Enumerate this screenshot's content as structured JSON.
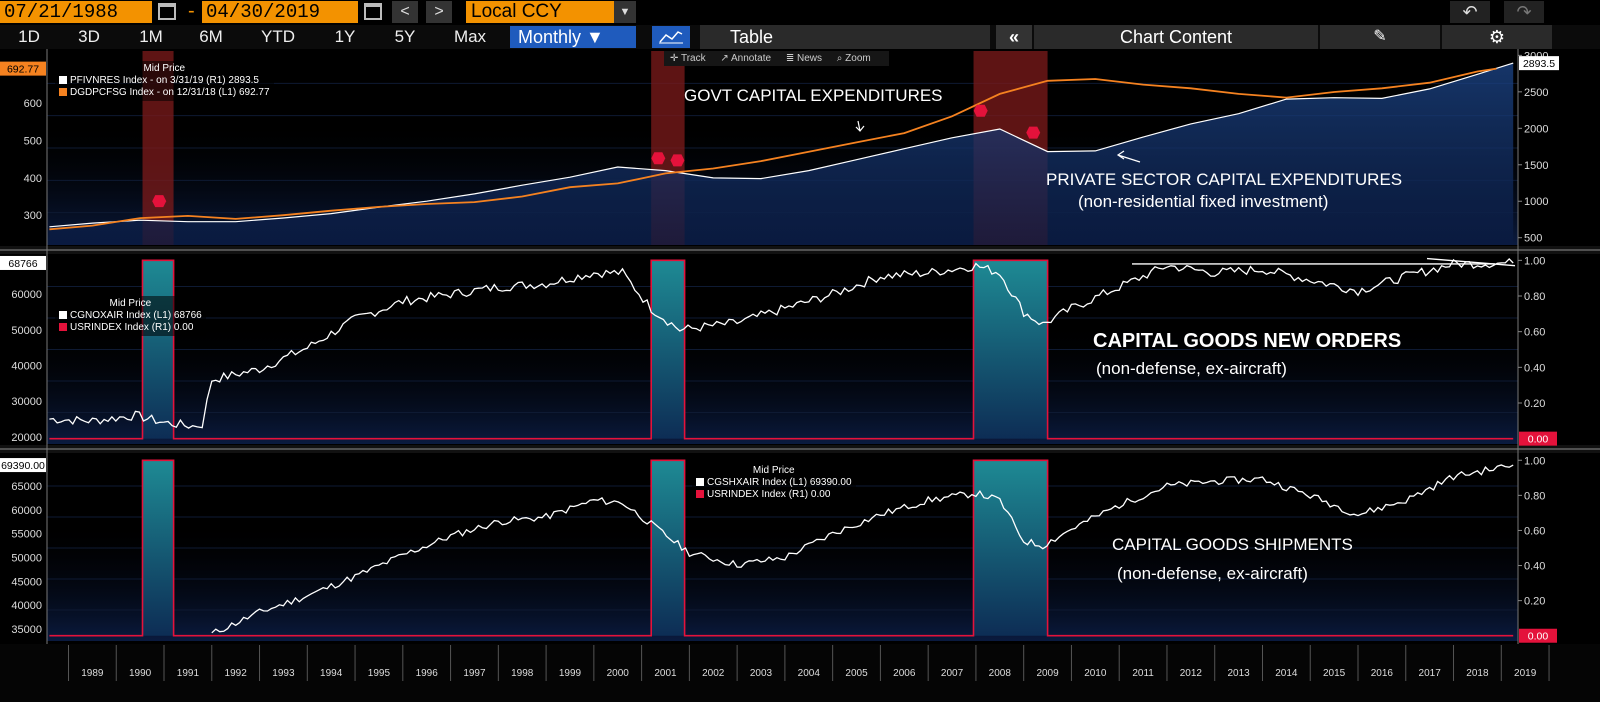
{
  "toolbar": {
    "start_date": "07/21/1988",
    "date_sep": "-",
    "end_date": "04/30/2019",
    "currency": "Local CCY",
    "back": "<",
    "forward": ">",
    "undo": "↶",
    "redo": "↷"
  },
  "timeframes": [
    "1D",
    "3D",
    "1M",
    "6M",
    "YTD",
    "1Y",
    "5Y",
    "Max"
  ],
  "period": "Monthly ▼",
  "table_label": "Table",
  "collapse_label": "«",
  "chart_content_label": "Chart Content",
  "chart_tools": {
    "track": "✛ Track",
    "annotate": "↗ Annotate",
    "news": "≣ News",
    "zoom": "⌕ Zoom"
  },
  "colors": {
    "orange": "#f58220",
    "white": "#ffffff",
    "recession": "#8b1c1c",
    "teal": "#1a7f8a",
    "red": "#e4123b",
    "fill": "#16356b"
  },
  "chart_data": [
    {
      "type": "line",
      "panel": "top",
      "legend_title": "Mid Price",
      "legend": [
        {
          "label": "PFIVNRES Index - on 3/31/19 (R1)  2893.5",
          "color": "#ffffff"
        },
        {
          "label": "DGDPCFSG Index - on 12/31/18 (L1) 692.77",
          "color": "#f58220"
        }
      ],
      "left_axis": {
        "ticks": [
          "600",
          "500",
          "400",
          "300"
        ],
        "tick_values": [
          600,
          500,
          400,
          300
        ],
        "range": [
          220,
          740
        ],
        "last_label": "692.77"
      },
      "right_axis": {
        "ticks": [
          "3000",
          "2500",
          "2000",
          "1500",
          "1000",
          "500"
        ],
        "tick_values": [
          3000,
          2500,
          2000,
          1500,
          1000,
          500
        ],
        "range": [
          400,
          3060
        ],
        "last_label": "2893.5"
      },
      "recessions": [
        [
          1990.55,
          1991.2
        ],
        [
          2001.2,
          2001.9
        ],
        [
          2007.95,
          2009.5
        ]
      ],
      "rec_markers": [
        [
          1990.9,
          1002
        ],
        [
          2001.35,
          1590
        ],
        [
          2001.75,
          1560
        ],
        [
          2008.1,
          2240
        ],
        [
          2009.2,
          1940
        ]
      ],
      "series": [
        {
          "name": "DGDPCFSG",
          "axis": "left",
          "color": "#f58220",
          "x": [
            1988.6,
            1989.5,
            1990.5,
            1991.5,
            1992.5,
            1993.5,
            1994.5,
            1995.5,
            1996.5,
            1997.5,
            1998.5,
            1999.5,
            2000.5,
            2001.5,
            2002.5,
            2003.5,
            2004.5,
            2005.5,
            2006.5,
            2007.5,
            2008.5,
            2009.5,
            2010.5,
            2011.5,
            2012.5,
            2013.5,
            2014.5,
            2015.5,
            2016.5,
            2017.5,
            2018.5,
            2018.9
          ],
          "values": [
            262,
            272,
            292,
            298,
            290,
            300,
            312,
            322,
            330,
            335,
            350,
            375,
            385,
            412,
            425,
            445,
            470,
            495,
            520,
            565,
            625,
            660,
            665,
            650,
            640,
            625,
            615,
            630,
            640,
            655,
            685,
            692.77
          ]
        },
        {
          "name": "PFIVNRES",
          "axis": "right",
          "color": "#ffffff",
          "x": [
            1988.6,
            1989.5,
            1990.5,
            1991.5,
            1992.5,
            1993.5,
            1994.5,
            1995.5,
            1996.5,
            1997.5,
            1998.5,
            1999.5,
            2000.5,
            2001.5,
            2002.5,
            2003.5,
            2004.5,
            2005.5,
            2006.5,
            2007.5,
            2008.5,
            2009.5,
            2010.5,
            2011.5,
            2012.5,
            2013.5,
            2014.5,
            2015.5,
            2016.5,
            2017.5,
            2018.5,
            2019.25
          ],
          "values": [
            650,
            700,
            740,
            720,
            720,
            770,
            830,
            920,
            1000,
            1100,
            1220,
            1330,
            1470,
            1420,
            1320,
            1310,
            1420,
            1570,
            1720,
            1870,
            1990,
            1680,
            1690,
            1880,
            2060,
            2200,
            2400,
            2420,
            2410,
            2540,
            2740,
            2893.5
          ]
        }
      ],
      "annotations": {
        "govt": "GOVT CAPITAL EXPENDITURES",
        "private1": "PRIVATE SECTOR CAPITAL EXPENDITURES",
        "private2": "(non-residential fixed investment)"
      }
    },
    {
      "type": "line",
      "panel": "middle",
      "legend_title": "Mid Price",
      "legend": [
        {
          "label": "CGNOXAIR Index  (L1) 68766",
          "color": "#ffffff"
        },
        {
          "label": "USRINDEX Index  (R1) 0.00",
          "color": "#e4123b"
        }
      ],
      "left_axis": {
        "ticks": [
          "60000",
          "50000",
          "40000",
          "30000",
          "20000"
        ],
        "tick_values": [
          60000,
          50000,
          40000,
          30000,
          20000
        ],
        "range": [
          18000,
          71000
        ],
        "last_label": "68766"
      },
      "right_axis": {
        "ticks": [
          "1.00",
          "0.80",
          "0.60",
          "0.40",
          "0.20"
        ],
        "tick_values": [
          1,
          0.8,
          0.6,
          0.4,
          0.2
        ],
        "range": [
          -0.03,
          1.03
        ],
        "last_label": "0.00"
      },
      "series": [
        {
          "name": "CGNOXAIR",
          "axis": "left",
          "color": "#ffffff",
          "x": [
            1988.6,
            1989.5,
            1990.4,
            1991.0,
            1991.6,
            1991.8,
            1992.0,
            1993.0,
            1994.0,
            1995.0,
            1996.0,
            1997.0,
            1998.0,
            1999.0,
            2000.0,
            2000.6,
            2001.2,
            2001.8,
            2003.0,
            2004.0,
            2005.0,
            2006.0,
            2007.0,
            2008.0,
            2008.5,
            2009.0,
            2009.4,
            2010.0,
            2011.0,
            2012.0,
            2013.0,
            2014.0,
            2015.0,
            2016.0,
            2017.0,
            2018.0,
            2019.25
          ],
          "values": [
            25000,
            24500,
            26000,
            24000,
            23000,
            23500,
            36000,
            39000,
            45000,
            53000,
            58000,
            60000,
            62000,
            63000,
            66000,
            66000,
            56000,
            50000,
            52000,
            56000,
            60000,
            65000,
            66000,
            68000,
            66000,
            55000,
            51500,
            56000,
            62000,
            68000,
            66000,
            67000,
            64000,
            61000,
            65000,
            68500,
            68766
          ]
        },
        {
          "name": "USRINDEX",
          "axis": "right",
          "color": "#e4123b",
          "x": [
            1988.6,
            1990.55,
            1990.55,
            1991.2,
            1991.2,
            2001.2,
            2001.2,
            2001.9,
            2001.9,
            2007.95,
            2007.95,
            2009.5,
            2009.5,
            2019.25
          ],
          "values": [
            0,
            0,
            1,
            1,
            0,
            0,
            1,
            1,
            0,
            0,
            1,
            1,
            0,
            0
          ]
        }
      ],
      "annotations": {
        "title": "CAPITAL GOODS NEW ORDERS",
        "sub": "(non-defense, ex-aircraft)"
      }
    },
    {
      "type": "line",
      "panel": "bottom",
      "legend_title": "Mid Price",
      "legend": [
        {
          "label": "CGSHXAIR Index  (L1) 69390.00",
          "color": "#ffffff"
        },
        {
          "label": "USRINDEX Index  (R1) 0.00",
          "color": "#e4123b"
        }
      ],
      "left_axis": {
        "ticks": [
          "65000",
          "60000",
          "55000",
          "50000",
          "45000",
          "40000",
          "35000"
        ],
        "tick_values": [
          65000,
          60000,
          55000,
          50000,
          45000,
          40000,
          35000
        ],
        "range": [
          32500,
          71500
        ],
        "last_label": "69390.00"
      },
      "right_axis": {
        "ticks": [
          "1.00",
          "0.80",
          "0.60",
          "0.40",
          "0.20"
        ],
        "tick_values": [
          1,
          0.8,
          0.6,
          0.4,
          0.2
        ],
        "range": [
          -0.03,
          1.03
        ],
        "last_label": "0.00"
      },
      "series": [
        {
          "name": "CGSHXAIR",
          "axis": "left",
          "color": "#ffffff",
          "x": [
            1992.0,
            1993.0,
            1994.0,
            1995.0,
            1996.0,
            1997.0,
            1998.0,
            1999.0,
            2000.0,
            2000.6,
            2001.2,
            2002.0,
            2003.0,
            2004.0,
            2005.0,
            2006.0,
            2007.0,
            2008.0,
            2008.5,
            2009.0,
            2009.4,
            2010.0,
            2011.0,
            2012.0,
            2013.0,
            2014.0,
            2015.0,
            2016.0,
            2017.0,
            2018.0,
            2019.25
          ],
          "values": [
            34000,
            38500,
            42000,
            46000,
            50500,
            54500,
            57500,
            58500,
            62000,
            61500,
            57000,
            51000,
            48500,
            50000,
            55000,
            59000,
            62000,
            63500,
            62000,
            53500,
            52500,
            56000,
            61000,
            65000,
            66000,
            66500,
            63000,
            59000,
            62000,
            67000,
            69390
          ]
        },
        {
          "name": "USRINDEX",
          "axis": "right",
          "color": "#e4123b",
          "x": [
            1988.6,
            1990.55,
            1990.55,
            1991.2,
            1991.2,
            2001.2,
            2001.2,
            2001.9,
            2001.9,
            2007.95,
            2007.95,
            2009.5,
            2009.5,
            2019.25
          ],
          "values": [
            0,
            0,
            1,
            1,
            0,
            0,
            1,
            1,
            0,
            0,
            1,
            1,
            0,
            0
          ]
        }
      ],
      "annotations": {
        "title": "CAPITAL GOODS SHIPMENTS",
        "sub": "(non-defense, ex-aircraft)"
      },
      "x_axis": {
        "labels": [
          "1989",
          "1990",
          "1991",
          "1992",
          "1993",
          "1994",
          "1995",
          "1996",
          "1997",
          "1998",
          "1999",
          "2000",
          "2001",
          "2002",
          "2003",
          "2004",
          "2005",
          "2006",
          "2007",
          "2008",
          "2009",
          "2010",
          "2011",
          "2012",
          "2013",
          "2014",
          "2015",
          "2016",
          "2017",
          "2018",
          "2019"
        ],
        "range": [
          1988.55,
          2019.35
        ]
      }
    }
  ]
}
